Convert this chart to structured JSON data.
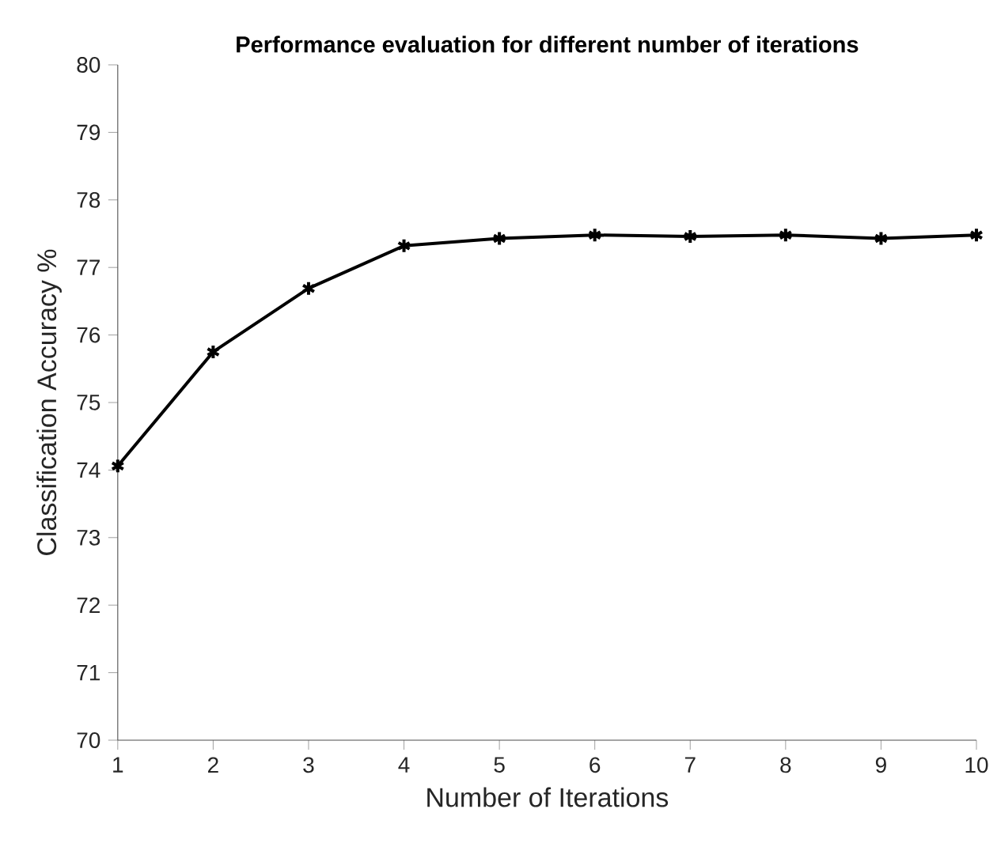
{
  "chart_data": {
    "type": "line",
    "title": "Performance evaluation for different number of iterations",
    "xlabel": "Number of Iterations",
    "ylabel": "Classification Accuracy %",
    "x": [
      1,
      2,
      3,
      4,
      5,
      6,
      7,
      8,
      9,
      10
    ],
    "series": [
      {
        "color": "#000000",
        "values": [
          74.06,
          75.75,
          76.69,
          77.32,
          77.43,
          77.48,
          77.46,
          77.48,
          77.43,
          77.48
        ]
      }
    ],
    "xlim": [
      1,
      10
    ],
    "xticks": [
      1,
      2,
      3,
      4,
      5,
      6,
      7,
      8,
      9,
      10
    ],
    "ylim": [
      70,
      80
    ],
    "yticks": [
      70,
      71,
      72,
      73,
      74,
      75,
      76,
      77,
      78,
      79,
      80
    ],
    "grid": false,
    "marker": "cross",
    "line_style": "solid"
  }
}
